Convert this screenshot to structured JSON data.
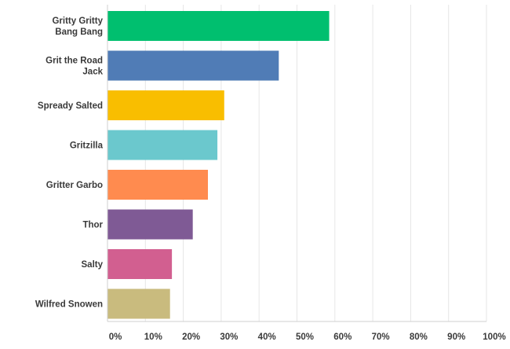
{
  "chart_data": {
    "type": "bar",
    "orientation": "horizontal",
    "categories": [
      [
        "Gritty Gritty",
        "Bang Bang"
      ],
      [
        "Grit the Road",
        "Jack"
      ],
      [
        "Spready Salted"
      ],
      [
        "Gritzilla"
      ],
      [
        "Gritter Garbo"
      ],
      [
        "Thor"
      ],
      [
        "Salty"
      ],
      [
        "Wilfred Snowen"
      ]
    ],
    "values": [
      58.5,
      45.2,
      30.8,
      29.0,
      26.5,
      22.5,
      17.0,
      16.5
    ],
    "colors": [
      "#00bf6f",
      "#507cb6",
      "#f9be00",
      "#6bc8cd",
      "#ff8b4f",
      "#7f5a95",
      "#d25f90",
      "#c9bb7e"
    ],
    "xlim": [
      0,
      100
    ],
    "xticks": [
      "0%",
      "10%",
      "20%",
      "30%",
      "40%",
      "50%",
      "60%",
      "70%",
      "80%",
      "90%",
      "100%"
    ],
    "grid": true
  }
}
